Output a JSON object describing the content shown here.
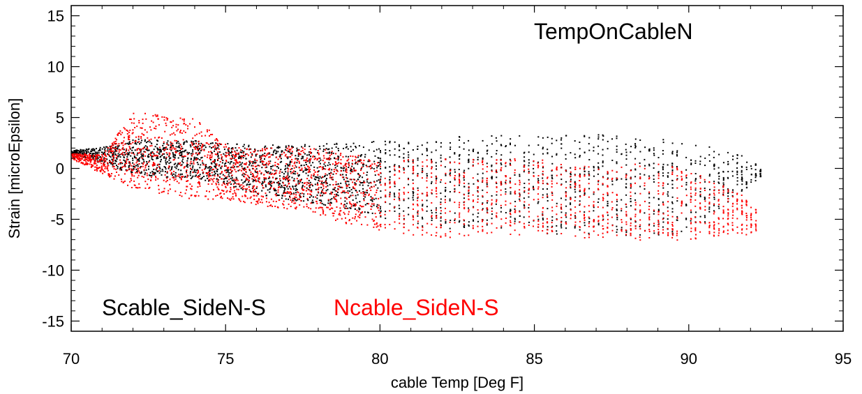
{
  "chart_data": {
    "type": "scatter",
    "title": "TempOnCableN",
    "xlabel": "cable Temp [Deg F]",
    "ylabel": "Strain [microEpsilon]",
    "xlim": [
      70,
      95
    ],
    "ylim": [
      -16,
      16
    ],
    "xticks": [
      70,
      75,
      80,
      85,
      90,
      95
    ],
    "yticks": [
      -15,
      -10,
      -5,
      0,
      5,
      10,
      15
    ],
    "xtick_labels": [
      "70",
      "75",
      "80",
      "85",
      "90",
      "95"
    ],
    "ytick_labels": [
      "-15",
      "-10",
      "-5",
      "0",
      "5",
      "10",
      "15"
    ],
    "grid": false,
    "series": [
      {
        "name": "Scable_SideN-S",
        "color": "#000000",
        "envelope": [
          [
            70.0,
            1.5,
            1.8
          ],
          [
            71.0,
            0.5,
            2.2
          ],
          [
            72.0,
            -0.5,
            3.0
          ],
          [
            73.0,
            -0.8,
            2.8
          ],
          [
            74.0,
            -1.0,
            2.8
          ],
          [
            75.0,
            -1.5,
            2.5
          ],
          [
            76.0,
            -2.5,
            2.5
          ],
          [
            77.0,
            -3.0,
            2.3
          ],
          [
            78.0,
            -3.5,
            2.5
          ],
          [
            79.0,
            -4.0,
            2.6
          ],
          [
            80.0,
            -5.0,
            2.8
          ],
          [
            81.0,
            -5.5,
            3.0
          ],
          [
            82.0,
            -5.8,
            3.2
          ],
          [
            83.0,
            -6.0,
            3.3
          ],
          [
            84.0,
            -6.0,
            3.3
          ],
          [
            85.0,
            -6.3,
            3.3
          ],
          [
            86.0,
            -6.5,
            3.3
          ],
          [
            87.0,
            -6.5,
            3.4
          ],
          [
            88.0,
            -6.5,
            3.2
          ],
          [
            89.0,
            -6.5,
            3.0
          ],
          [
            90.0,
            -6.5,
            2.5
          ],
          [
            91.0,
            -4.0,
            2.0
          ],
          [
            92.0,
            -1.5,
            1.0
          ],
          [
            92.4,
            -0.5,
            -0.3
          ]
        ]
      },
      {
        "name": "Ncable_SideN-S",
        "color": "#ff0000",
        "envelope": [
          [
            70.0,
            1.0,
            1.5
          ],
          [
            71.0,
            -0.5,
            1.5
          ],
          [
            72.0,
            -2.0,
            5.5
          ],
          [
            73.0,
            -2.5,
            5.5
          ],
          [
            74.0,
            -3.0,
            5.0
          ],
          [
            75.0,
            -3.0,
            2.5
          ],
          [
            76.0,
            -3.5,
            2.0
          ],
          [
            77.0,
            -4.0,
            2.2
          ],
          [
            78.0,
            -4.5,
            2.0
          ],
          [
            79.0,
            -5.5,
            1.5
          ],
          [
            80.0,
            -6.0,
            1.0
          ],
          [
            81.0,
            -6.5,
            1.0
          ],
          [
            82.0,
            -7.0,
            1.0
          ],
          [
            83.0,
            -6.5,
            1.0
          ],
          [
            84.0,
            -6.5,
            1.0
          ],
          [
            85.0,
            -6.5,
            1.0
          ],
          [
            86.0,
            -6.5,
            0.5
          ],
          [
            87.0,
            -7.0,
            0.5
          ],
          [
            88.0,
            -7.0,
            0.5
          ],
          [
            89.0,
            -7.0,
            0.5
          ],
          [
            90.0,
            -7.0,
            0.0
          ],
          [
            91.0,
            -6.5,
            -1.5
          ],
          [
            92.0,
            -6.5,
            -3.0
          ],
          [
            92.3,
            -6.0,
            -4.5
          ]
        ]
      }
    ],
    "legend": {
      "placement": "bottom-left",
      "items": [
        {
          "label": "Scable_SideN-S",
          "color": "#000000"
        },
        {
          "label": "Ncable_SideN-S",
          "color": "#ff0000"
        }
      ]
    }
  }
}
